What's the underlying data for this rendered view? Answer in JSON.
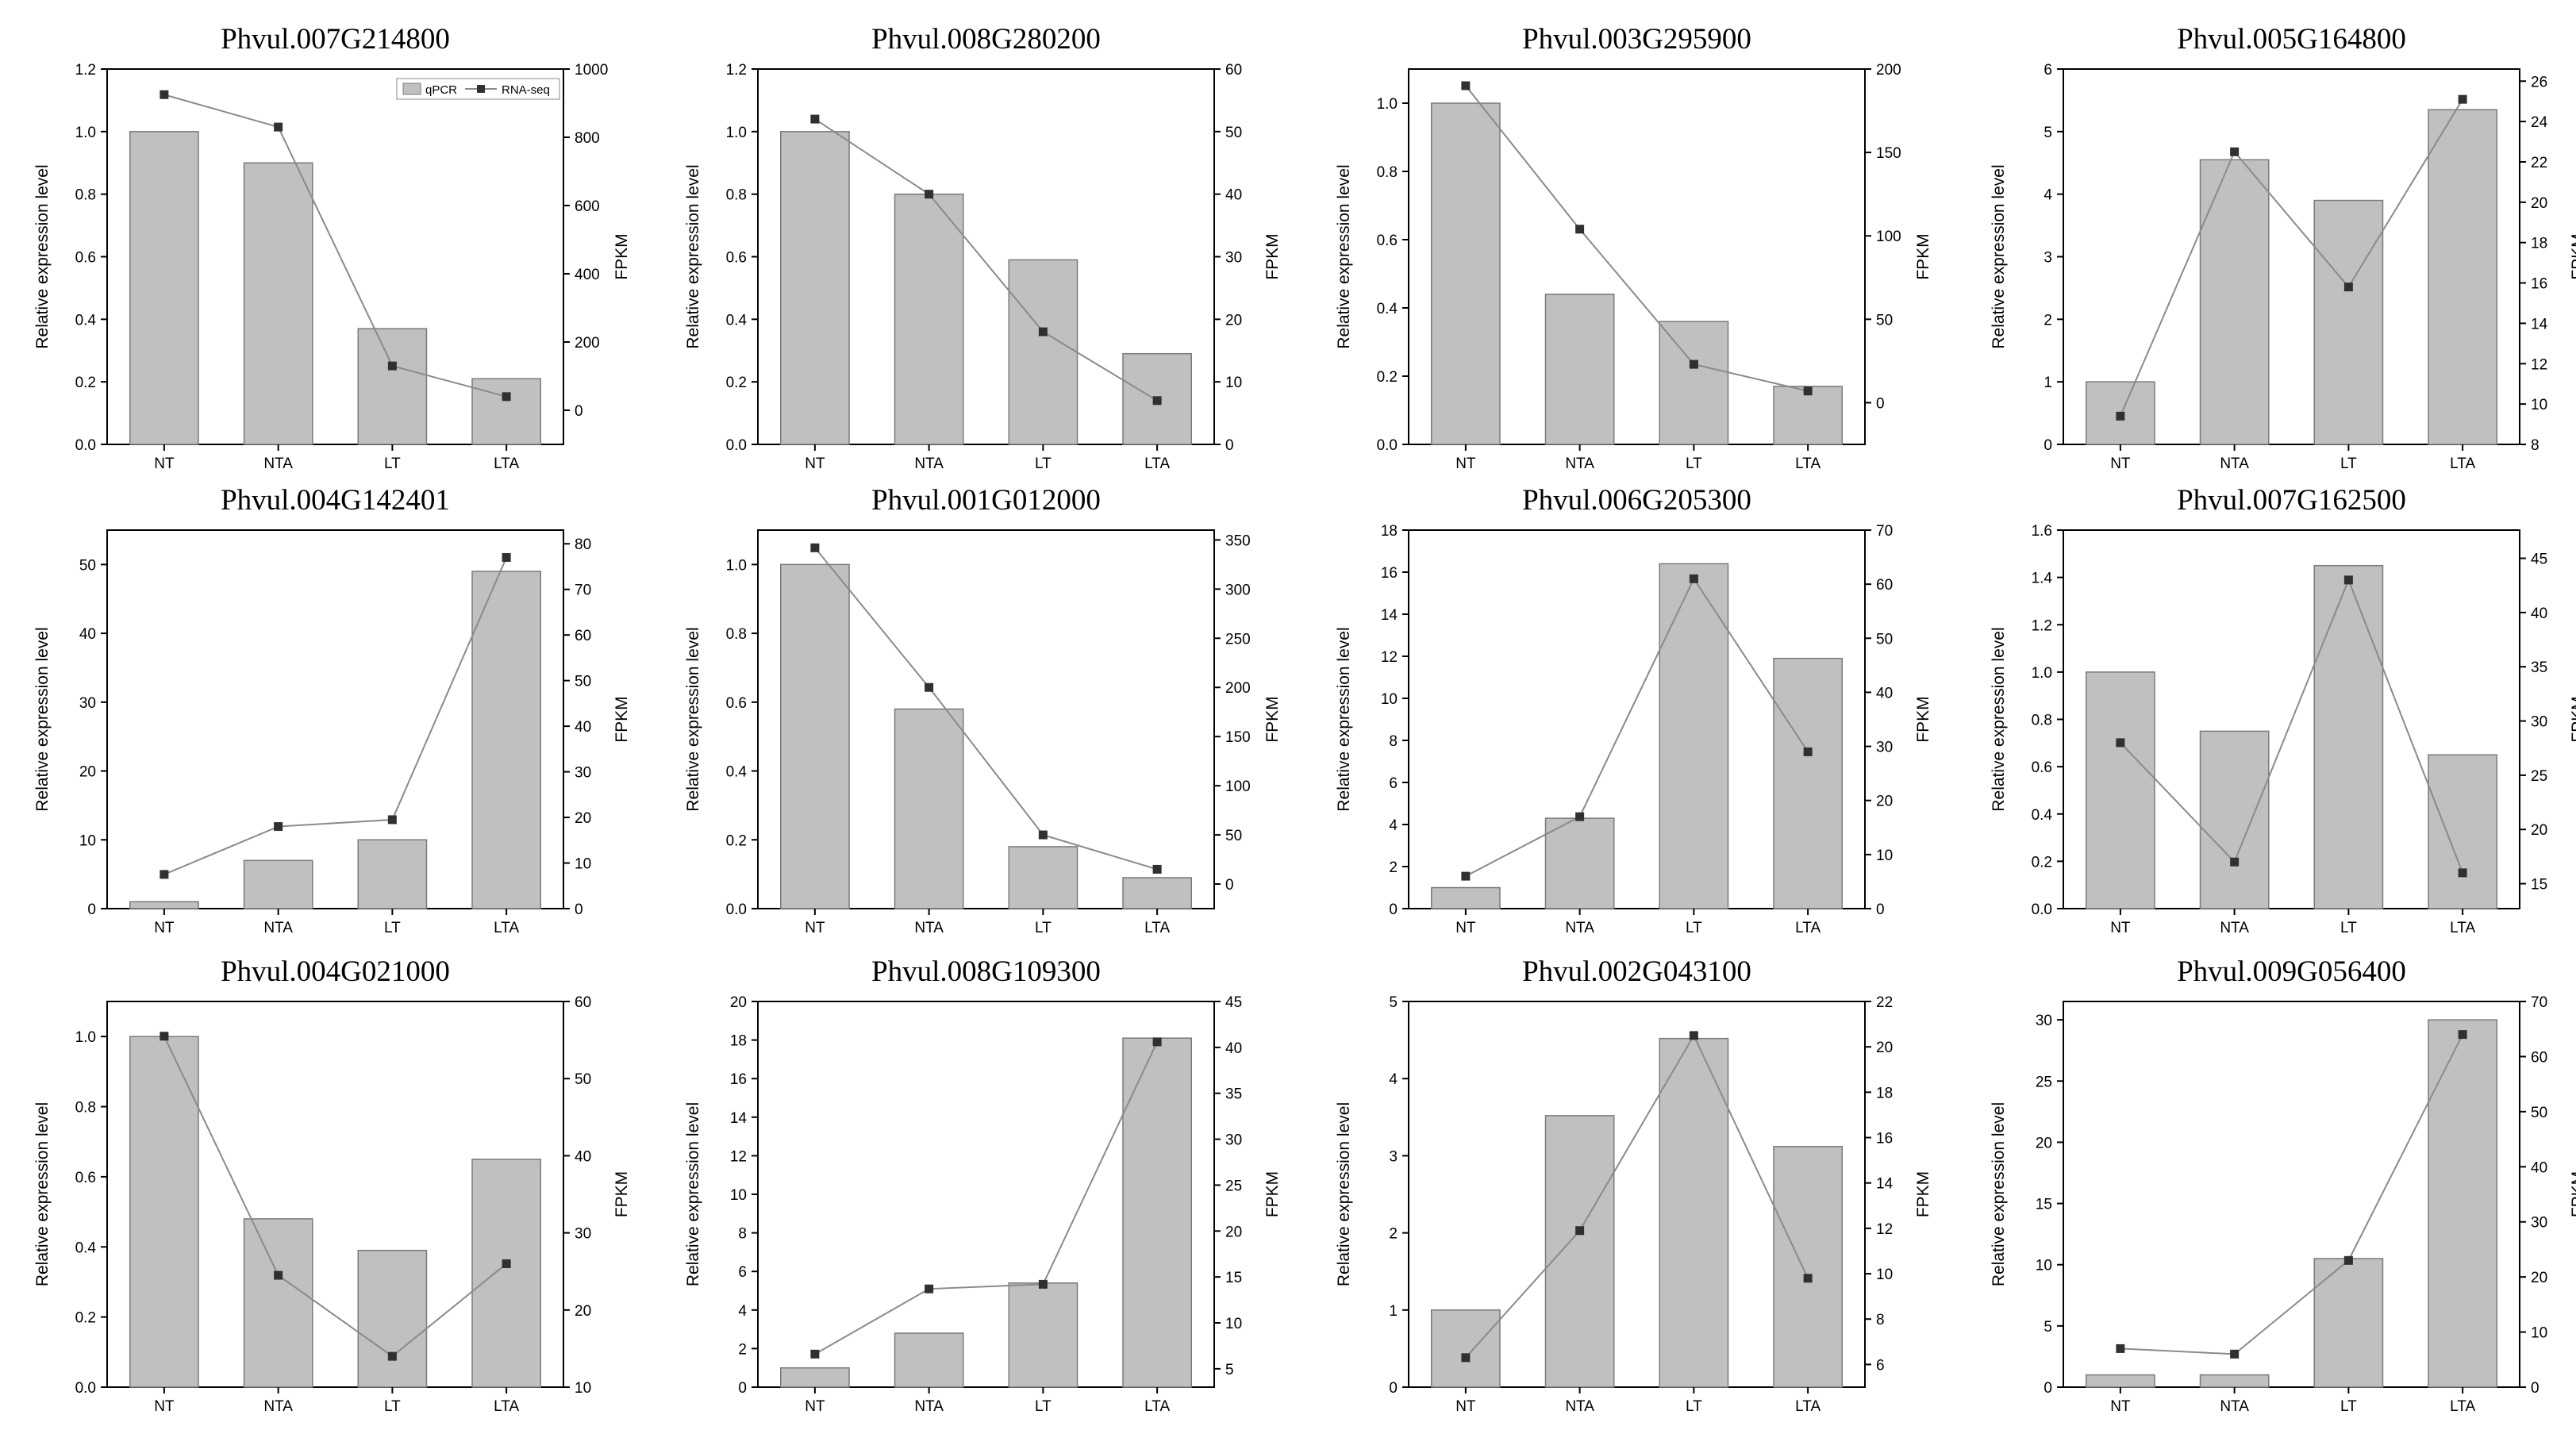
{
  "figure": {
    "left_axis_label": "Relative expression level",
    "right_axis_label": "FPKM",
    "legend": {
      "bar_label": "qPCR",
      "line_label": "RNA-seq"
    },
    "colors": {
      "bar": "#c0c0c0",
      "bar_edge": "#7a7a7a",
      "line": "#8a8a8a",
      "marker": "#303030",
      "axis": "#000000"
    }
  },
  "chart_data": [
    {
      "type": "bar+line",
      "title": "Phvul.007G214800",
      "categories": [
        "NT",
        "NTA",
        "LT",
        "LTA"
      ],
      "series": [
        {
          "name": "qPCR",
          "axis": "left",
          "values": [
            1.0,
            0.9,
            0.37,
            0.21
          ]
        },
        {
          "name": "RNA-seq",
          "axis": "right",
          "values": [
            925,
            830,
            130,
            40
          ]
        }
      ],
      "ylim_left": [
        0,
        1.2
      ],
      "yticks_left": [
        "0.0",
        "0.2",
        "0.4",
        "0.6",
        "0.8",
        "1.0",
        "1.2"
      ],
      "ylim_right": [
        -100,
        1000
      ],
      "yticks_right": [
        "0",
        "200",
        "400",
        "600",
        "800",
        "1000"
      ],
      "legend": true
    },
    {
      "type": "bar+line",
      "title": "Phvul.008G280200",
      "categories": [
        "NT",
        "NTA",
        "LT",
        "LTA"
      ],
      "series": [
        {
          "name": "qPCR",
          "axis": "left",
          "values": [
            1.0,
            0.8,
            0.59,
            0.29
          ]
        },
        {
          "name": "RNA-seq",
          "axis": "right",
          "values": [
            52,
            40,
            18,
            7
          ]
        }
      ],
      "ylim_left": [
        0,
        1.2
      ],
      "yticks_left": [
        "0.0",
        "0.2",
        "0.4",
        "0.6",
        "0.8",
        "1.0",
        "1.2"
      ],
      "ylim_right": [
        0,
        60
      ],
      "yticks_right": [
        "0",
        "10",
        "20",
        "30",
        "40",
        "50",
        "60"
      ]
    },
    {
      "type": "bar+line",
      "title": "Phvul.003G295900",
      "categories": [
        "NT",
        "NTA",
        "LT",
        "LTA"
      ],
      "series": [
        {
          "name": "qPCR",
          "axis": "left",
          "values": [
            1.0,
            0.44,
            0.36,
            0.17
          ]
        },
        {
          "name": "RNA-seq",
          "axis": "right",
          "values": [
            190,
            104,
            23,
            7
          ]
        }
      ],
      "ylim_left": [
        0,
        1.1
      ],
      "yticks_left": [
        "0.0",
        "0.2",
        "0.4",
        "0.6",
        "0.8",
        "1.0"
      ],
      "ylim_right": [
        -25,
        200
      ],
      "yticks_right": [
        "0",
        "50",
        "100",
        "150",
        "200"
      ]
    },
    {
      "type": "bar+line",
      "title": "Phvul.005G164800",
      "categories": [
        "NT",
        "NTA",
        "LT",
        "LTA"
      ],
      "series": [
        {
          "name": "qPCR",
          "axis": "left",
          "values": [
            1.0,
            4.55,
            3.9,
            5.35
          ]
        },
        {
          "name": "RNA-seq",
          "axis": "right",
          "values": [
            9.4,
            22.5,
            15.8,
            25.1
          ]
        }
      ],
      "ylim_left": [
        0,
        6
      ],
      "yticks_left": [
        "0",
        "1",
        "2",
        "3",
        "4",
        "5",
        "6"
      ],
      "ylim_right": [
        8,
        26.6
      ],
      "yticks_right": [
        "8",
        "10",
        "12",
        "14",
        "16",
        "18",
        "20",
        "22",
        "24",
        "26"
      ]
    },
    {
      "type": "bar+line",
      "title": "Phvul.004G142401",
      "categories": [
        "NT",
        "NTA",
        "LT",
        "LTA"
      ],
      "series": [
        {
          "name": "qPCR",
          "axis": "left",
          "values": [
            1.0,
            7.0,
            10.0,
            49.0
          ]
        },
        {
          "name": "RNA-seq",
          "axis": "right",
          "values": [
            7.5,
            18,
            19.5,
            77
          ]
        }
      ],
      "ylim_left": [
        0,
        55
      ],
      "yticks_left": [
        "0",
        "10",
        "20",
        "30",
        "40",
        "50"
      ],
      "ylim_right": [
        0,
        83
      ],
      "yticks_right": [
        "0",
        "10",
        "20",
        "30",
        "40",
        "50",
        "60",
        "70",
        "80"
      ]
    },
    {
      "type": "bar+line",
      "title": "Phvul.001G012000",
      "categories": [
        "NT",
        "NTA",
        "LT",
        "LTA"
      ],
      "series": [
        {
          "name": "qPCR",
          "axis": "left",
          "values": [
            1.0,
            0.58,
            0.18,
            0.09
          ]
        },
        {
          "name": "RNA-seq",
          "axis": "right",
          "values": [
            342,
            200,
            50,
            15
          ]
        }
      ],
      "ylim_left": [
        0,
        1.1
      ],
      "yticks_left": [
        "0.0",
        "0.2",
        "0.4",
        "0.6",
        "0.8",
        "1.0"
      ],
      "ylim_right": [
        -25,
        360
      ],
      "yticks_right": [
        "0",
        "50",
        "100",
        "150",
        "200",
        "250",
        "300",
        "350"
      ]
    },
    {
      "type": "bar+line",
      "title": "Phvul.006G205300",
      "categories": [
        "NT",
        "NTA",
        "LT",
        "LTA"
      ],
      "series": [
        {
          "name": "qPCR",
          "axis": "left",
          "values": [
            1.0,
            4.3,
            16.4,
            11.9
          ]
        },
        {
          "name": "RNA-seq",
          "axis": "right",
          "values": [
            6,
            17,
            61,
            29
          ]
        }
      ],
      "ylim_left": [
        0,
        18
      ],
      "yticks_left": [
        "0",
        "2",
        "4",
        "6",
        "8",
        "10",
        "12",
        "14",
        "16",
        "18"
      ],
      "ylim_right": [
        0,
        70
      ],
      "yticks_right": [
        "0",
        "10",
        "20",
        "30",
        "40",
        "50",
        "60",
        "70"
      ]
    },
    {
      "type": "bar+line",
      "title": "Phvul.007G162500",
      "categories": [
        "NT",
        "NTA",
        "LT",
        "LTA"
      ],
      "series": [
        {
          "name": "qPCR",
          "axis": "left",
          "values": [
            1.0,
            0.75,
            1.45,
            0.65
          ]
        },
        {
          "name": "RNA-seq",
          "axis": "right",
          "values": [
            28,
            17,
            43,
            16
          ]
        }
      ],
      "ylim_left": [
        0,
        1.6
      ],
      "yticks_left": [
        "0.0",
        "0.2",
        "0.4",
        "0.6",
        "0.8",
        "1.0",
        "1.2",
        "1.4",
        "1.6"
      ],
      "ylim_right": [
        12.7,
        47.6
      ],
      "yticks_right": [
        "15",
        "20",
        "25",
        "30",
        "35",
        "40",
        "45"
      ]
    },
    {
      "type": "bar+line",
      "title": "Phvul.004G021000",
      "categories": [
        "NT",
        "NTA",
        "LT",
        "LTA"
      ],
      "series": [
        {
          "name": "qPCR",
          "axis": "left",
          "values": [
            1.0,
            0.48,
            0.39,
            0.65
          ]
        },
        {
          "name": "RNA-seq",
          "axis": "right",
          "values": [
            55.5,
            24.5,
            14,
            26
          ]
        }
      ],
      "ylim_left": [
        0,
        1.1
      ],
      "yticks_left": [
        "0.0",
        "0.2",
        "0.4",
        "0.6",
        "0.8",
        "1.0"
      ],
      "ylim_right": [
        10,
        60
      ],
      "yticks_right": [
        "10",
        "20",
        "30",
        "40",
        "50",
        "60"
      ]
    },
    {
      "type": "bar+line",
      "title": "Phvul.008G109300",
      "categories": [
        "NT",
        "NTA",
        "LT",
        "LTA"
      ],
      "series": [
        {
          "name": "qPCR",
          "axis": "left",
          "values": [
            1.0,
            2.8,
            5.4,
            18.1
          ]
        },
        {
          "name": "RNA-seq",
          "axis": "right",
          "values": [
            6.6,
            13.7,
            14.2,
            40.6
          ]
        }
      ],
      "ylim_left": [
        0,
        20
      ],
      "yticks_left": [
        "0",
        "2",
        "4",
        "6",
        "8",
        "10",
        "12",
        "14",
        "16",
        "18",
        "20"
      ],
      "ylim_right": [
        3,
        45
      ],
      "yticks_right": [
        "5",
        "10",
        "15",
        "20",
        "25",
        "30",
        "35",
        "40",
        "45"
      ]
    },
    {
      "type": "bar+line",
      "title": "Phvul.002G043100",
      "categories": [
        "NT",
        "NTA",
        "LT",
        "LTA"
      ],
      "series": [
        {
          "name": "qPCR",
          "axis": "left",
          "values": [
            1.0,
            3.52,
            4.52,
            3.12
          ]
        },
        {
          "name": "RNA-seq",
          "axis": "right",
          "values": [
            6.3,
            11.9,
            20.5,
            9.8
          ]
        }
      ],
      "ylim_left": [
        0,
        5
      ],
      "yticks_left": [
        "0",
        "1",
        "2",
        "3",
        "4",
        "5"
      ],
      "ylim_right": [
        5,
        22
      ],
      "yticks_right": [
        "6",
        "8",
        "10",
        "12",
        "14",
        "16",
        "18",
        "20",
        "22"
      ]
    },
    {
      "type": "bar+line",
      "title": "Phvul.009G056400",
      "categories": [
        "NT",
        "NTA",
        "LT",
        "LTA"
      ],
      "series": [
        {
          "name": "qPCR",
          "axis": "left",
          "values": [
            1.0,
            1.0,
            10.5,
            30.0
          ]
        },
        {
          "name": "RNA-seq",
          "axis": "right",
          "values": [
            7,
            6,
            23,
            64
          ]
        }
      ],
      "ylim_left": [
        0,
        31.5
      ],
      "yticks_left": [
        "0",
        "5",
        "10",
        "15",
        "20",
        "25",
        "30"
      ],
      "ylim_right": [
        0,
        70
      ],
      "yticks_right": [
        "0",
        "10",
        "20",
        "30",
        "40",
        "50",
        "60",
        "70"
      ]
    }
  ]
}
